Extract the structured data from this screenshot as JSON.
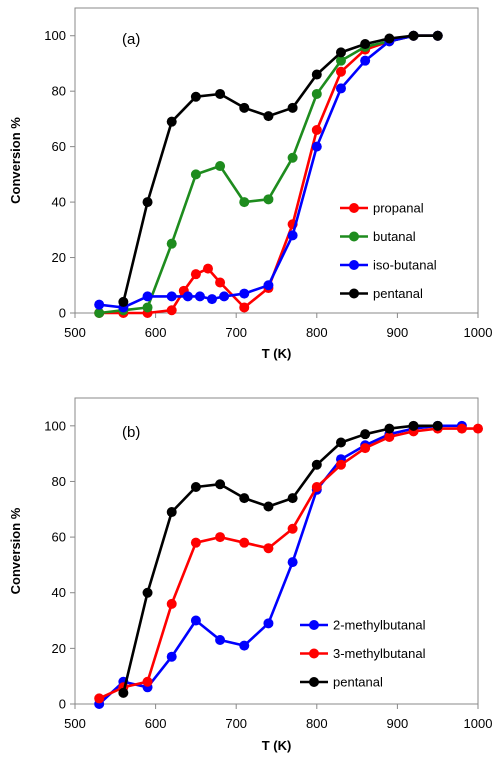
{
  "chart_data": [
    {
      "type": "line",
      "panel_label": "(a)",
      "xlabel": "T (K)",
      "ylabel": "Conversion %",
      "xlim": [
        500,
        1000
      ],
      "ylim": [
        0,
        110
      ],
      "xticks": [
        500,
        600,
        700,
        800,
        900,
        1000
      ],
      "yticks": [
        0,
        20,
        40,
        60,
        80,
        100
      ],
      "grid": false,
      "legend_position": "lower-right",
      "series": [
        {
          "name": "propanal",
          "color": "#ff0000",
          "x": [
            530,
            560,
            590,
            620,
            635,
            650,
            665,
            680,
            710,
            740,
            770,
            800,
            830,
            860,
            890,
            920,
            950
          ],
          "y": [
            0,
            0,
            0,
            1,
            8,
            14,
            16,
            11,
            2,
            9,
            32,
            66,
            87,
            95,
            98,
            100,
            100
          ]
        },
        {
          "name": "butanal",
          "color": "#1e8c1e",
          "x": [
            530,
            560,
            590,
            620,
            650,
            680,
            710,
            740,
            770,
            800,
            830,
            860,
            890,
            920,
            950
          ],
          "y": [
            0,
            1,
            2,
            25,
            50,
            53,
            40,
            41,
            56,
            79,
            91,
            96,
            98,
            100,
            100
          ]
        },
        {
          "name": "iso-butanal",
          "color": "#0000ff",
          "x": [
            530,
            560,
            590,
            620,
            640,
            655,
            670,
            685,
            710,
            740,
            770,
            800,
            830,
            860,
            890,
            920,
            950
          ],
          "y": [
            3,
            2,
            6,
            6,
            6,
            6,
            5,
            6,
            7,
            10,
            28,
            60,
            81,
            91,
            98,
            100,
            100
          ]
        },
        {
          "name": "pentanal",
          "color": "#000000",
          "x": [
            560,
            590,
            620,
            650,
            680,
            710,
            740,
            770,
            800,
            830,
            860,
            890,
            920,
            950
          ],
          "y": [
            4,
            40,
            69,
            78,
            79,
            74,
            71,
            74,
            86,
            94,
            97,
            99,
            100,
            100
          ]
        }
      ]
    },
    {
      "type": "line",
      "panel_label": "(b)",
      "xlabel": "T (K)",
      "ylabel": "Conversion %",
      "xlim": [
        500,
        1000
      ],
      "ylim": [
        0,
        110
      ],
      "xticks": [
        500,
        600,
        700,
        800,
        900,
        1000
      ],
      "yticks": [
        0,
        20,
        40,
        60,
        80,
        100
      ],
      "grid": false,
      "legend_position": "lower-right",
      "series": [
        {
          "name": "2-methylbutanal",
          "color": "#0000ff",
          "x": [
            530,
            560,
            590,
            620,
            650,
            680,
            710,
            740,
            770,
            800,
            830,
            860,
            890,
            920,
            950,
            980
          ],
          "y": [
            0,
            8,
            6,
            17,
            30,
            23,
            21,
            29,
            51,
            77,
            88,
            93,
            97,
            99,
            100,
            100
          ]
        },
        {
          "name": "3-methylbutanal",
          "color": "#ff0000",
          "x": [
            530,
            560,
            590,
            620,
            650,
            680,
            710,
            740,
            770,
            800,
            830,
            860,
            890,
            920,
            950,
            980,
            1000
          ],
          "y": [
            2,
            6,
            8,
            36,
            58,
            60,
            58,
            56,
            63,
            78,
            86,
            92,
            96,
            98,
            99,
            99,
            99
          ]
        },
        {
          "name": "pentanal",
          "color": "#000000",
          "x": [
            560,
            590,
            620,
            650,
            680,
            710,
            740,
            770,
            800,
            830,
            860,
            890,
            920,
            950
          ],
          "y": [
            4,
            40,
            69,
            78,
            79,
            74,
            71,
            74,
            86,
            94,
            97,
            99,
            100,
            100
          ]
        }
      ]
    }
  ]
}
